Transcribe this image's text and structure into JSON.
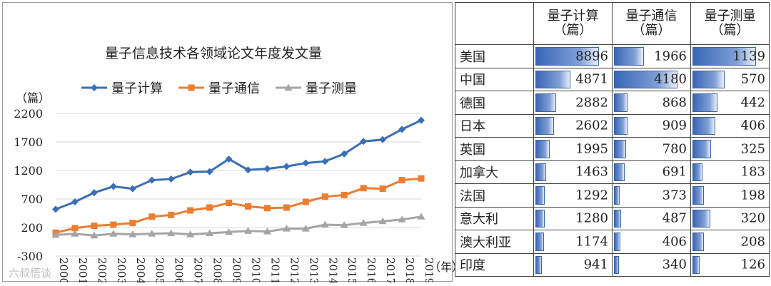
{
  "chart_data": {
    "type": "line",
    "title": "量子信息技术各领域论文年度发文量",
    "ylabel": "（篇）",
    "xlabel": "（年）",
    "categories": [
      "2000",
      "2001",
      "2002",
      "2003",
      "2004",
      "2005",
      "2006",
      "2007",
      "2008",
      "2009",
      "2010",
      "2011",
      "2012",
      "2013",
      "2014",
      "2015",
      "2016",
      "2017",
      "2018",
      "2019"
    ],
    "ylim": [
      -300,
      2200
    ],
    "yticks": [
      "2200",
      "1700",
      "1200",
      "700",
      "200",
      "-300"
    ],
    "series": [
      {
        "name": "量子计算",
        "color": "#3b6fb6",
        "marker": "diamond",
        "values": [
          520,
          650,
          810,
          920,
          880,
          1030,
          1050,
          1170,
          1180,
          1400,
          1210,
          1230,
          1270,
          1330,
          1360,
          1490,
          1710,
          1740,
          1920,
          2080
        ]
      },
      {
        "name": "量子通信",
        "color": "#ed7d31",
        "marker": "square",
        "values": [
          110,
          190,
          230,
          250,
          280,
          390,
          420,
          500,
          550,
          630,
          570,
          540,
          550,
          650,
          740,
          770,
          890,
          880,
          1030,
          1060
        ]
      },
      {
        "name": "量子测量",
        "color": "#a5a5a5",
        "marker": "triangle",
        "values": [
          70,
          90,
          60,
          90,
          80,
          90,
          100,
          80,
          100,
          120,
          140,
          130,
          180,
          180,
          250,
          240,
          280,
          310,
          340,
          390
        ]
      }
    ],
    "legend_position": "top"
  },
  "watermark": "六叔悟谈",
  "table": {
    "headers": [
      "量子计算\n（篇）",
      "量子通信\n（篇）",
      "量子测量\n（篇）"
    ],
    "max": [
      8896,
      4180,
      1139
    ],
    "rows": [
      {
        "country": "美国",
        "values": [
          8896,
          1966,
          1139
        ]
      },
      {
        "country": "中国",
        "values": [
          4871,
          4180,
          570
        ]
      },
      {
        "country": "德国",
        "values": [
          2882,
          868,
          442
        ]
      },
      {
        "country": "日本",
        "values": [
          2602,
          909,
          406
        ]
      },
      {
        "country": "英国",
        "values": [
          1995,
          780,
          325
        ]
      },
      {
        "country": "加拿大",
        "values": [
          1463,
          691,
          183
        ]
      },
      {
        "country": "法国",
        "values": [
          1292,
          373,
          198
        ]
      },
      {
        "country": "意大利",
        "values": [
          1280,
          487,
          320
        ]
      },
      {
        "country": "澳大利亚",
        "values": [
          1174,
          406,
          208
        ]
      },
      {
        "country": "印度",
        "values": [
          941,
          340,
          126
        ]
      }
    ]
  }
}
